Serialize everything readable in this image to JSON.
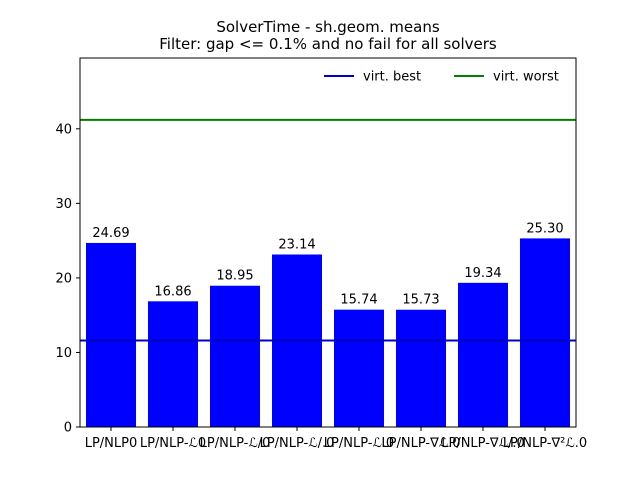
{
  "chart_data": {
    "type": "bar",
    "title": "SolverTime - sh.geom. means",
    "subtitle": "Filter: gap <= 0.1% and no fail for all solvers",
    "xlabel": "",
    "ylabel": "",
    "categories": [
      "LP/NLP0",
      "LP/NLP-ℒ0",
      "LP/NLP-ℒ/0",
      "LP/NLP-ℒ/.0",
      "LP/NLP-ℒ.0",
      "LP/NLP-∇ℒ.0",
      "LP/NLP-∇ℒ/.0",
      "LP/NLP-∇²ℒ.0"
    ],
    "values": [
      24.69,
      16.86,
      18.95,
      23.14,
      15.74,
      15.73,
      19.34,
      25.3
    ],
    "data_labels": [
      "24.69",
      "16.86",
      "18.95",
      "23.14",
      "15.74",
      "15.73",
      "19.34",
      "25.30"
    ],
    "ylim": [
      0,
      49.5
    ],
    "yticks": [
      0,
      10,
      20,
      30,
      40
    ],
    "grid": false,
    "bar_color": "#0000ff",
    "reference_lines": [
      {
        "name": "virt. best",
        "value": 11.6,
        "color": "#0000bf"
      },
      {
        "name": "virt. worst",
        "value": 41.2,
        "color": "#007f00"
      }
    ],
    "legend_position": "top-right"
  }
}
